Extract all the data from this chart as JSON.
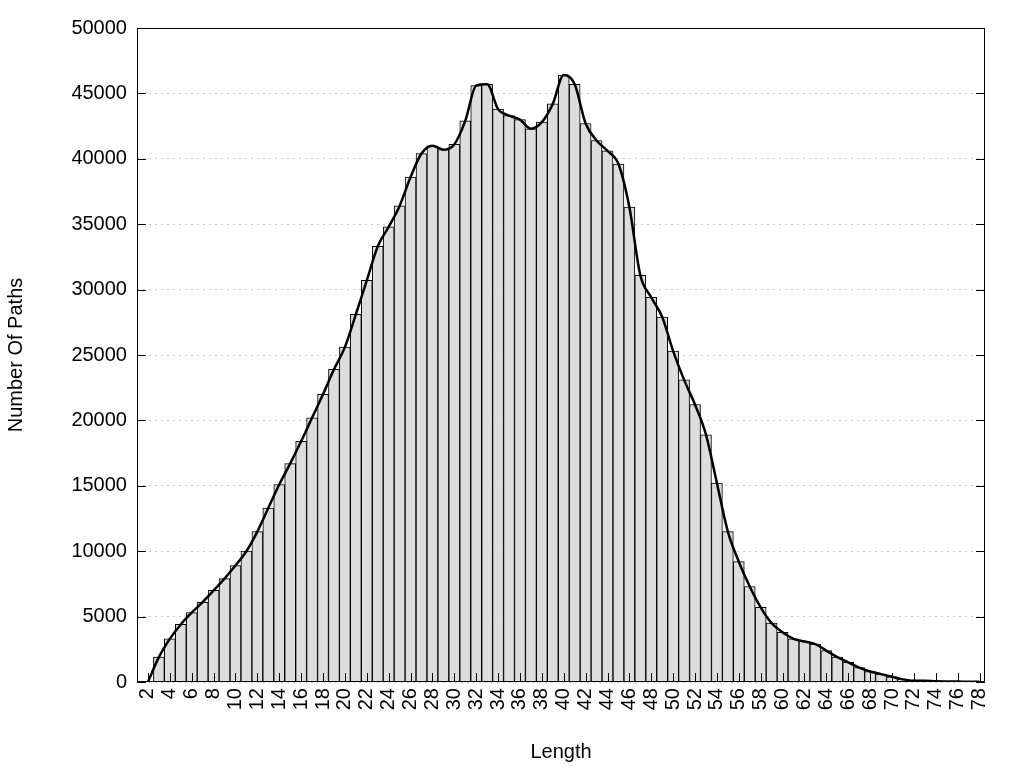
{
  "chart_data": {
    "type": "histogram",
    "xlabel": "Length",
    "ylabel": "Number Of Paths",
    "bins": [
      1.5,
      2.5,
      3.5,
      4.5,
      5.5,
      6.5,
      7.5,
      8.5,
      9.5,
      10.5,
      11.5,
      12.5,
      13.5,
      14.5,
      15.5,
      16.5,
      17.5,
      18.5,
      19.5,
      20.5,
      21.5,
      22.5,
      23.5,
      24.5,
      25.5,
      26.5,
      27.5,
      28.5,
      29.5,
      30.5,
      31.5,
      32.5,
      33.5,
      34.5,
      35.5,
      36.5,
      37.5,
      38.5,
      39.5,
      40.5,
      41.5,
      42.5,
      43.5,
      44.5,
      45.5,
      46.5,
      47.5,
      48.5,
      49.5,
      50.5,
      51.5,
      52.5,
      53.5,
      54.5,
      55.5,
      56.5,
      57.5,
      58.5,
      59.5,
      60.5,
      61.5,
      62.5,
      63.5,
      64.5,
      65.5,
      66.5,
      67.5,
      68.5,
      69.5,
      70.5,
      71.5,
      72.5,
      73.5,
      74.5,
      75.5,
      76.5,
      77.5,
      78.5
    ],
    "values": [
      0,
      1900,
      3300,
      4400,
      5300,
      6100,
      7000,
      7900,
      8900,
      10000,
      11500,
      13300,
      15100,
      16700,
      18400,
      20200,
      22000,
      23900,
      25600,
      28100,
      30700,
      33300,
      34800,
      36400,
      38600,
      40400,
      41000,
      40700,
      41100,
      42900,
      45600,
      45700,
      43800,
      43300,
      43000,
      42300,
      42800,
      44200,
      46400,
      45700,
      42700,
      41400,
      40600,
      39600,
      36300,
      31100,
      29400,
      27900,
      25300,
      23100,
      21200,
      18900,
      15200,
      11500,
      9200,
      7300,
      5700,
      4500,
      3800,
      3300,
      3100,
      2900,
      2400,
      1900,
      1500,
      1100,
      800,
      600,
      400,
      200,
      100,
      100,
      50,
      40,
      30,
      20,
      10
    ],
    "color": "#dddddd",
    "series": [
      {
        "type": "line",
        "color": "#000000",
        "x": [
          2,
          3,
          4,
          5,
          6,
          7,
          8,
          9,
          10,
          11,
          12,
          13,
          14,
          15,
          16,
          17,
          18,
          19,
          20,
          21,
          22,
          23,
          24,
          25,
          26,
          27,
          28,
          29,
          30,
          31,
          32,
          33,
          34,
          35,
          36,
          37,
          38,
          39,
          40,
          41,
          42,
          43,
          44,
          45,
          46,
          47,
          48,
          49,
          50,
          51,
          52,
          53,
          54,
          55,
          56,
          57,
          58,
          59,
          60,
          61,
          62,
          63,
          64,
          65,
          66,
          67,
          68,
          69,
          70,
          71,
          72,
          73,
          74,
          75,
          76,
          77,
          78
        ],
        "values": [
          0,
          1900,
          3300,
          4400,
          5300,
          6100,
          7000,
          7900,
          8900,
          10000,
          11500,
          13300,
          15100,
          16700,
          18400,
          20200,
          22000,
          23900,
          25600,
          28100,
          30700,
          33300,
          34800,
          36400,
          38600,
          40400,
          41000,
          40700,
          41100,
          42900,
          45600,
          45700,
          43800,
          43300,
          43000,
          42300,
          42800,
          44200,
          46400,
          45700,
          42700,
          41400,
          40600,
          39600,
          36300,
          31100,
          29400,
          27900,
          25300,
          23100,
          21200,
          18900,
          15200,
          11500,
          9200,
          7300,
          5700,
          4500,
          3800,
          3300,
          3100,
          2900,
          2400,
          1900,
          1500,
          1100,
          800,
          600,
          400,
          200,
          100,
          100,
          50,
          40,
          30,
          20,
          10
        ]
      }
    ],
    "xlim": [
      1,
      78.5
    ],
    "xticks": [
      2,
      4,
      6,
      8,
      10,
      12,
      14,
      16,
      18,
      20,
      22,
      24,
      26,
      28,
      30,
      32,
      34,
      36,
      38,
      40,
      42,
      44,
      46,
      48,
      50,
      52,
      54,
      56,
      58,
      60,
      62,
      64,
      66,
      68,
      70,
      72,
      74,
      76,
      78
    ],
    "ylim": [
      0,
      50000
    ],
    "yticks": [
      0,
      5000,
      10000,
      15000,
      20000,
      25000,
      30000,
      35000,
      40000,
      45000,
      50000
    ],
    "grid": "y",
    "legend": false
  }
}
